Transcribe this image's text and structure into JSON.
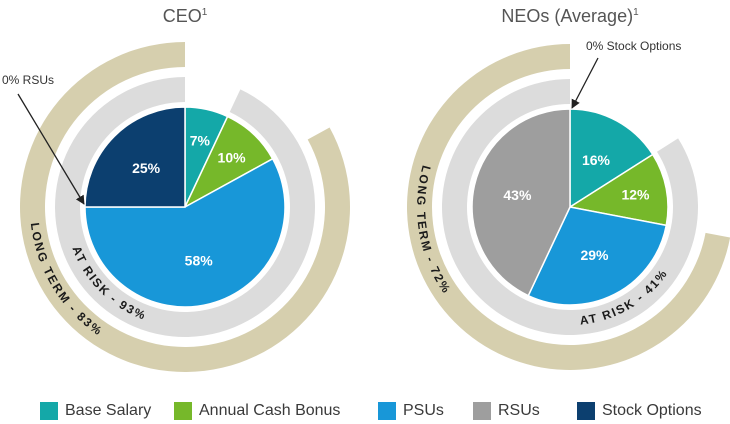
{
  "colors": {
    "base_salary": "#14a8a8",
    "annual_cash_bonus": "#76b82a",
    "psus": "#1897d8",
    "rsus": "#9e9e9e",
    "stock_options": "#0c3f6f",
    "at_risk_ring": "#dcdcdc",
    "long_term_ring": "#d6cfae",
    "title_text": "#555555",
    "ring_text": "#1a1a1a"
  },
  "chart_data": [
    {
      "type": "pie",
      "title": "CEO",
      "title_sup": "1",
      "slices": [
        {
          "key": "base_salary",
          "label": "Base Salary",
          "value": 7,
          "text": "7%"
        },
        {
          "key": "annual_cash_bonus",
          "label": "Annual Cash Bonus",
          "value": 10,
          "text": "10%"
        },
        {
          "key": "psus",
          "label": "PSUs",
          "value": 58,
          "text": "58%"
        },
        {
          "key": "rsus",
          "label": "RSUs",
          "value": 0,
          "text": ""
        },
        {
          "key": "stock_options",
          "label": "Stock Options",
          "value": 25,
          "text": "25%"
        }
      ],
      "at_risk_label": "AT RISK - 93%",
      "long_term_label": "LONG TERM - 83%",
      "callout": "0% RSUs"
    },
    {
      "type": "pie",
      "title": "NEOs (Average)",
      "title_sup": "1",
      "slices": [
        {
          "key": "base_salary",
          "label": "Base Salary",
          "value": 16,
          "text": "16%"
        },
        {
          "key": "annual_cash_bonus",
          "label": "Annual Cash Bonus",
          "value": 12,
          "text": "12%"
        },
        {
          "key": "psus",
          "label": "PSUs",
          "value": 29,
          "text": "29%"
        },
        {
          "key": "rsus",
          "label": "RSUs",
          "value": 43,
          "text": "43%"
        },
        {
          "key": "stock_options",
          "label": "Stock Options",
          "value": 0,
          "text": ""
        }
      ],
      "at_risk_label": "AT RISK - 41%",
      "long_term_label": "LONG TERM - 72%",
      "callout": "0% Stock Options"
    }
  ],
  "legend": [
    {
      "key": "base_salary",
      "label": "Base Salary"
    },
    {
      "key": "annual_cash_bonus",
      "label": "Annual Cash Bonus"
    },
    {
      "key": "psus",
      "label": "PSUs"
    },
    {
      "key": "rsus",
      "label": "RSUs"
    },
    {
      "key": "stock_options",
      "label": "Stock Options"
    }
  ]
}
